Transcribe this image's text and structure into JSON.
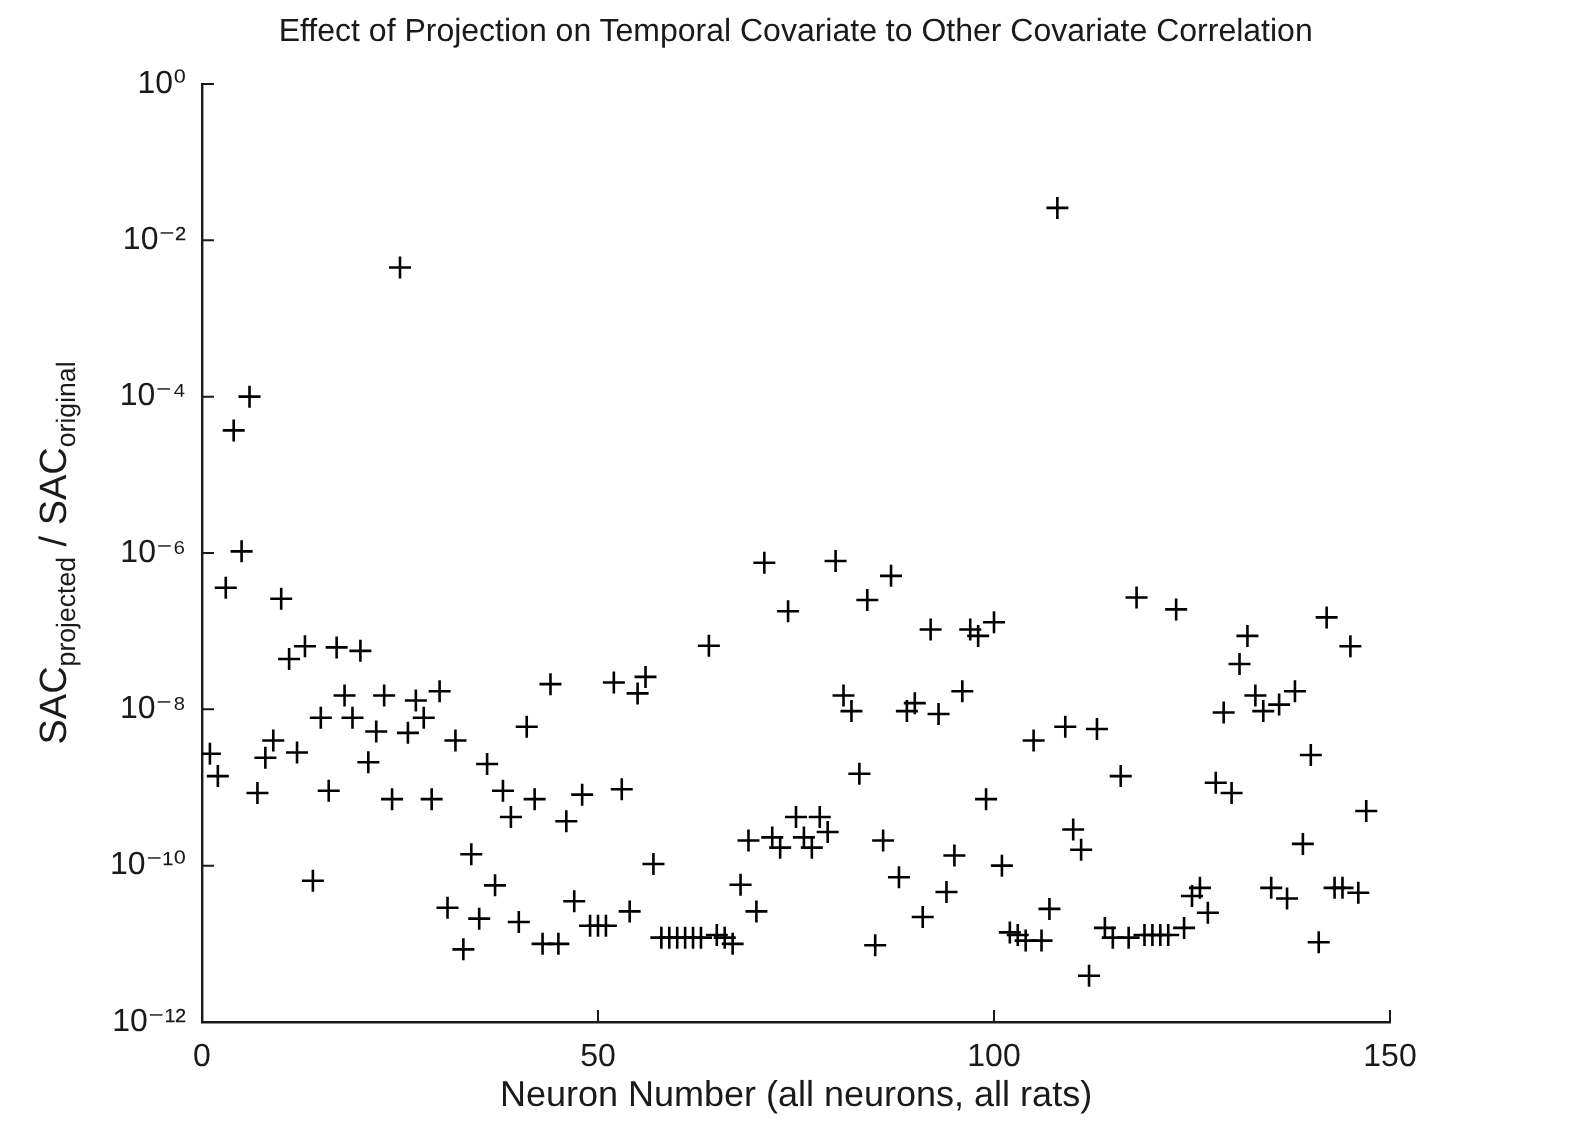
{
  "chart_data": {
    "type": "scatter",
    "title": "Effect of Projection on Temporal Covariate to Other Covariate Correlation",
    "xlabel": "Neuron Number (all neurons, all rats)",
    "ylabel": "SAC$_{projected}$ / SAC$_{original}$",
    "x": [
      1,
      2,
      3,
      4,
      5,
      6,
      7,
      8,
      9,
      10,
      11,
      12,
      13,
      14,
      15,
      16,
      17,
      18,
      19,
      20,
      21,
      22,
      23,
      24,
      25,
      26,
      27,
      28,
      29,
      30,
      31,
      32,
      33,
      34,
      35,
      36,
      37,
      38,
      39,
      40,
      41,
      42,
      43,
      44,
      45,
      46,
      47,
      48,
      49,
      50,
      51,
      52,
      53,
      54,
      55,
      56,
      57,
      58,
      59,
      60,
      61,
      62,
      63,
      64,
      65,
      66,
      67,
      68,
      69,
      70,
      71,
      72,
      73,
      74,
      75,
      76,
      77,
      78,
      79,
      80,
      81,
      82,
      83,
      84,
      85,
      86,
      87,
      88,
      89,
      90,
      91,
      92,
      93,
      94,
      95,
      96,
      97,
      98,
      99,
      100,
      101,
      102,
      103,
      104,
      105,
      106,
      107,
      108,
      109,
      110,
      111,
      112,
      113,
      114,
      115,
      116,
      117,
      118,
      119,
      120,
      121,
      122,
      123,
      124,
      125,
      126,
      127,
      128,
      129,
      130,
      131,
      132,
      133,
      134,
      135,
      136,
      137,
      138,
      139,
      140,
      141,
      142,
      143,
      144,
      145,
      146,
      147
    ],
    "values": [
      2.7e-09,
      1.4e-09,
      3.6e-07,
      3.7e-05,
      1.05e-06,
      0.0001,
      8.5e-10,
      2.4e-09,
      4e-09,
      2.6e-07,
      4.4e-08,
      2.8e-09,
      6.4e-08,
      6.4e-11,
      7.8e-09,
      9.1e-10,
      6.2e-08,
      1.5e-08,
      7.8e-09,
      5.6e-08,
      2.1e-09,
      5.2e-09,
      1.5e-08,
      7.1e-10,
      0.0045,
      5e-09,
      1.3e-08,
      7.8e-09,
      7.1e-10,
      1.7e-08,
      2.9e-11,
      4e-09,
      8.5e-12,
      1.4e-10,
      2.1e-11,
      2e-09,
      5.6e-11,
      9.1e-10,
      4.2e-10,
      1.9e-11,
      6e-09,
      7.1e-10,
      1e-11,
      2.1e-08,
      1e-11,
      3.7e-10,
      3.5e-11,
      8.1e-10,
      1.7e-11,
      1.7e-11,
      1.7e-11,
      2.2e-08,
      9.5e-10,
      2.6e-11,
      1.6e-08,
      2.6e-08,
      1.05e-10,
      1.2e-11,
      1.2e-11,
      1.2e-11,
      1.2e-11,
      1.2e-11,
      1.2e-11,
      6.5e-08,
      1.3e-11,
      1.2e-11,
      1e-11,
      5.7e-11,
      2.1e-10,
      2.6e-11,
      7.5e-07,
      2.3e-10,
      1.7e-10,
      1.8e-07,
      4.2e-10,
      2.3e-10,
      1.7e-10,
      4.2e-10,
      2.7e-10,
      7.9e-07,
      1.5e-08,
      9.5e-09,
      1.5e-09,
      2.5e-07,
      9.6e-12,
      2.1e-10,
      5.1e-07,
      7.1e-11,
      9.5e-09,
      1.2e-08,
      2.2e-11,
      1.05e-07,
      8.7e-09,
      4.6e-11,
      1.35e-10,
      1.7e-08,
      1.05e-07,
      8.7e-08,
      7.1e-10,
      1.3e-07,
      1e-10,
      1.4e-11,
      1.3e-11,
      1.1e-11,
      4e-09,
      1.1e-11,
      2.8e-11,
      0.026,
      6e-09,
      2.9e-10,
      1.6e-10,
      3.9e-12,
      5.6e-09,
      1.6e-11,
      1.2e-11,
      1.4e-09,
      1.2e-11,
      2.7e-07,
      1.3e-11,
      1.3e-11,
      1.3e-11,
      1.3e-11,
      1.9e-07,
      1.6e-11,
      4.1e-11,
      5.2e-11,
      2.5e-11,
      1.15e-09,
      9.1e-09,
      8.5e-10,
      3.8e-08,
      8.7e-08,
      1.5e-08,
      9.5e-09,
      5.2e-11,
      1.15e-08,
      3.8e-11,
      1.7e-08,
      1.9e-10,
      2.6e-09,
      1.05e-11,
      1.5e-07,
      5.2e-11,
      5.2e-11,
      6.4e-08,
      4.5e-11,
      5e-10
    ],
    "color": "#000000",
    "marker": "cross",
    "log": "y",
    "grid": false,
    "legend": false,
    "xlim": [
      0,
      150
    ],
    "xticks": [
      0,
      50,
      100,
      150
    ],
    "ylim": [
      1e-12,
      1
    ],
    "yticks": [
      {
        "value": 1e-12,
        "label": "10⁻¹²"
      },
      {
        "value": 1e-10,
        "label": "10⁻¹⁰"
      },
      {
        "value": 1e-08,
        "label": "10⁻⁸"
      },
      {
        "value": 1e-06,
        "label": "10⁻⁶"
      },
      {
        "value": 0.0001,
        "label": "10⁻⁴"
      },
      {
        "value": 0.01,
        "label": "10⁻²"
      },
      {
        "value": 1,
        "label": "10⁰"
      }
    ]
  }
}
